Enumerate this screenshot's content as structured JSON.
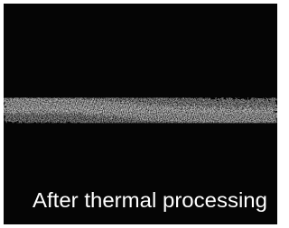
{
  "caption": "After thermal processing"
}
